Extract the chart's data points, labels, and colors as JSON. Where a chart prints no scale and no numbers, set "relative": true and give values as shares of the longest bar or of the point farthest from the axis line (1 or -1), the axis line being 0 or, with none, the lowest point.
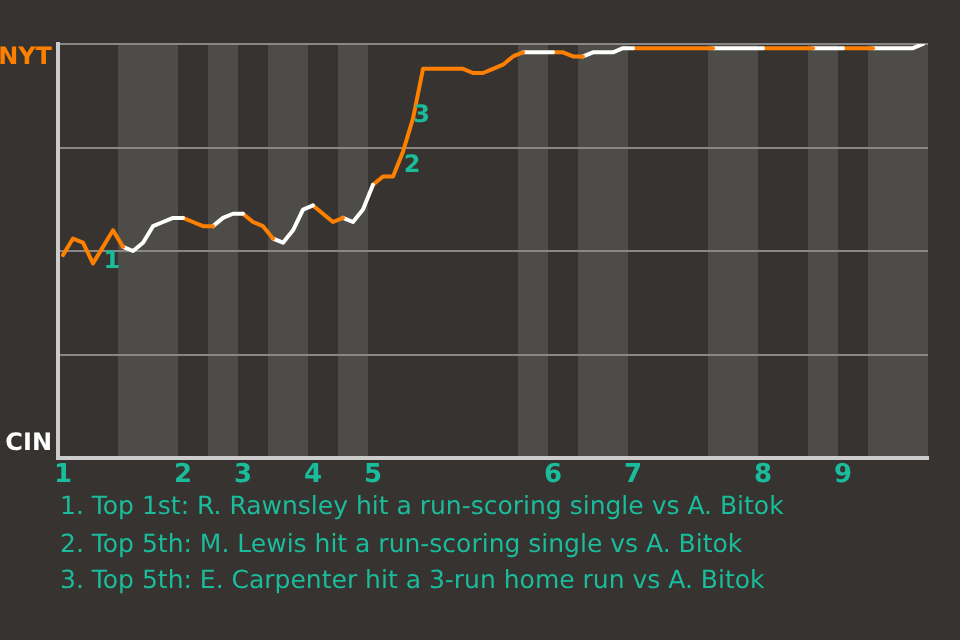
{
  "chart_data": {
    "type": "line",
    "relative": true,
    "categories": [
      "1",
      null,
      null,
      null,
      null,
      null,
      null,
      null,
      null,
      null,
      null,
      null,
      "2",
      null,
      null,
      null,
      null,
      null,
      "3",
      null,
      null,
      null,
      null,
      null,
      null,
      "4",
      null,
      null,
      null,
      null,
      null,
      "5",
      null,
      null,
      null,
      null,
      null,
      null,
      null,
      null,
      null,
      null,
      null,
      null,
      null,
      null,
      null,
      null,
      null,
      "6",
      null,
      null,
      null,
      null,
      null,
      null,
      null,
      "7",
      null,
      null,
      null,
      null,
      null,
      null,
      null,
      null,
      null,
      null,
      null,
      null,
      "8",
      null,
      null,
      null,
      null,
      null,
      null,
      null,
      "9",
      null,
      null,
      null,
      null,
      null,
      null,
      null,
      null
    ],
    "series": [
      {
        "color": "#ff8000",
        "values": [
          0.49,
          0.53,
          0.52,
          0.47,
          0.51,
          0.55,
          0.51,
          null,
          null,
          null,
          null,
          null,
          null,
          null,
          null,
          null,
          null,
          null,
          null,
          null,
          null,
          null,
          null,
          null,
          null,
          null,
          null,
          null,
          null,
          null,
          null,
          null,
          null,
          null,
          null,
          null,
          null,
          null,
          null,
          null,
          null,
          null,
          null,
          null,
          null,
          null,
          null,
          null,
          null,
          null,
          null,
          null,
          null,
          null,
          null,
          null,
          null,
          null,
          null,
          null,
          null,
          null,
          null,
          null,
          null,
          null,
          null,
          null,
          null,
          null,
          null,
          null,
          null,
          null,
          null,
          null,
          null,
          null,
          null,
          null,
          null,
          null,
          null,
          null,
          null,
          null,
          null
        ]
      },
      {
        "color": "#ffffff",
        "values": [
          null,
          null,
          null,
          null,
          null,
          null,
          0.51,
          0.5,
          0.52,
          0.56,
          0.57,
          0.58,
          0.58,
          null,
          null,
          null,
          null,
          null,
          null,
          null,
          null,
          null,
          null,
          null,
          null,
          null,
          null,
          null,
          null,
          null,
          null,
          null,
          null,
          null,
          null,
          null,
          null,
          null,
          null,
          null,
          null,
          null,
          null,
          null,
          null,
          null,
          null,
          null,
          null,
          null,
          null,
          null,
          null,
          null,
          null,
          null,
          null,
          null,
          null,
          null,
          null,
          null,
          null,
          null,
          null,
          null,
          null,
          null,
          null,
          null,
          null,
          null,
          null,
          null,
          null,
          null,
          null,
          null,
          null,
          null,
          null,
          null,
          null,
          null,
          null,
          null,
          null
        ]
      },
      {
        "color": "#ff8000",
        "values": [
          null,
          null,
          null,
          null,
          null,
          null,
          null,
          null,
          null,
          null,
          null,
          null,
          0.58,
          0.57,
          0.56,
          0.56,
          null,
          null,
          null,
          null,
          null,
          null,
          null,
          null,
          null,
          null,
          null,
          null,
          null,
          null,
          null,
          null,
          null,
          null,
          null,
          null,
          null,
          null,
          null,
          null,
          null,
          null,
          null,
          null,
          null,
          null,
          null,
          null,
          null,
          null,
          null,
          null,
          null,
          null,
          null,
          null,
          null,
          null,
          null,
          null,
          null,
          null,
          null,
          null,
          null,
          null,
          null,
          null,
          null,
          null,
          null,
          null,
          null,
          null,
          null,
          null,
          null,
          null,
          null,
          null,
          null,
          null,
          null,
          null,
          null,
          null,
          null
        ]
      },
      {
        "color": "#ffffff",
        "values": [
          null,
          null,
          null,
          null,
          null,
          null,
          null,
          null,
          null,
          null,
          null,
          null,
          null,
          null,
          null,
          0.56,
          0.58,
          0.59,
          0.59,
          null,
          null,
          null,
          null,
          null,
          null,
          null,
          null,
          null,
          null,
          null,
          null,
          null,
          null,
          null,
          null,
          null,
          null,
          null,
          null,
          null,
          null,
          null,
          null,
          null,
          null,
          null,
          null,
          null,
          null,
          null,
          null,
          null,
          null,
          null,
          null,
          null,
          null,
          null,
          null,
          null,
          null,
          null,
          null,
          null,
          null,
          null,
          null,
          null,
          null,
          null,
          null,
          null,
          null,
          null,
          null,
          null,
          null,
          null,
          null,
          null,
          null,
          null,
          null,
          null,
          null,
          null,
          null
        ]
      },
      {
        "color": "#ff8000",
        "values": [
          null,
          null,
          null,
          null,
          null,
          null,
          null,
          null,
          null,
          null,
          null,
          null,
          null,
          null,
          null,
          null,
          null,
          null,
          0.59,
          0.57,
          0.56,
          0.53,
          null,
          null,
          null,
          null,
          null,
          null,
          null,
          null,
          null,
          null,
          null,
          null,
          null,
          null,
          null,
          null,
          null,
          null,
          null,
          null,
          null,
          null,
          null,
          null,
          null,
          null,
          null,
          null,
          null,
          null,
          null,
          null,
          null,
          null,
          null,
          null,
          null,
          null,
          null,
          null,
          null,
          null,
          null,
          null,
          null,
          null,
          null,
          null,
          null,
          null,
          null,
          null,
          null,
          null,
          null,
          null,
          null,
          null,
          null,
          null,
          null,
          null,
          null,
          null,
          null
        ]
      },
      {
        "color": "#ffffff",
        "values": [
          null,
          null,
          null,
          null,
          null,
          null,
          null,
          null,
          null,
          null,
          null,
          null,
          null,
          null,
          null,
          null,
          null,
          null,
          null,
          null,
          null,
          0.53,
          0.52,
          0.55,
          0.6,
          0.61,
          null,
          null,
          null,
          null,
          null,
          null,
          null,
          null,
          null,
          null,
          null,
          null,
          null,
          null,
          null,
          null,
          null,
          null,
          null,
          null,
          null,
          null,
          null,
          null,
          null,
          null,
          null,
          null,
          null,
          null,
          null,
          null,
          null,
          null,
          null,
          null,
          null,
          null,
          null,
          null,
          null,
          null,
          null,
          null,
          null,
          null,
          null,
          null,
          null,
          null,
          null,
          null,
          null,
          null,
          null,
          null,
          null,
          null,
          null,
          null,
          null
        ]
      },
      {
        "color": "#ff8000",
        "values": [
          null,
          null,
          null,
          null,
          null,
          null,
          null,
          null,
          null,
          null,
          null,
          null,
          null,
          null,
          null,
          null,
          null,
          null,
          null,
          null,
          null,
          null,
          null,
          null,
          null,
          0.61,
          0.59,
          0.57,
          0.58,
          null,
          null,
          null,
          null,
          null,
          null,
          null,
          null,
          null,
          null,
          null,
          null,
          null,
          null,
          null,
          null,
          null,
          null,
          null,
          null,
          null,
          null,
          null,
          null,
          null,
          null,
          null,
          null,
          null,
          null,
          null,
          null,
          null,
          null,
          null,
          null,
          null,
          null,
          null,
          null,
          null,
          null,
          null,
          null,
          null,
          null,
          null,
          null,
          null,
          null,
          null,
          null,
          null,
          null,
          null,
          null,
          null,
          null
        ]
      },
      {
        "color": "#ffffff",
        "values": [
          null,
          null,
          null,
          null,
          null,
          null,
          null,
          null,
          null,
          null,
          null,
          null,
          null,
          null,
          null,
          null,
          null,
          null,
          null,
          null,
          null,
          null,
          null,
          null,
          null,
          null,
          null,
          null,
          0.58,
          0.57,
          0.6,
          0.66,
          null,
          null,
          null,
          null,
          null,
          null,
          null,
          null,
          null,
          null,
          null,
          null,
          null,
          null,
          null,
          null,
          null,
          null,
          null,
          null,
          null,
          null,
          null,
          null,
          null,
          null,
          null,
          null,
          null,
          null,
          null,
          null,
          null,
          null,
          null,
          null,
          null,
          null,
          null,
          null,
          null,
          null,
          null,
          null,
          null,
          null,
          null,
          null,
          null,
          null,
          null,
          null,
          null,
          null,
          null
        ]
      },
      {
        "color": "#ff8000",
        "values": [
          null,
          null,
          null,
          null,
          null,
          null,
          null,
          null,
          null,
          null,
          null,
          null,
          null,
          null,
          null,
          null,
          null,
          null,
          null,
          null,
          null,
          null,
          null,
          null,
          null,
          null,
          null,
          null,
          null,
          null,
          null,
          0.66,
          0.68,
          0.68,
          0.74,
          0.82,
          0.94,
          0.94,
          0.94,
          0.94,
          0.94,
          0.93,
          0.93,
          0.94,
          0.95,
          0.97,
          0.98,
          null,
          null,
          null,
          null,
          null,
          null,
          null,
          null,
          null,
          null,
          null,
          null,
          null,
          null,
          null,
          null,
          null,
          null,
          null,
          null,
          null,
          null,
          null,
          null,
          null,
          null,
          null,
          null,
          null,
          null,
          null,
          null,
          null,
          null,
          null,
          null,
          null,
          null,
          null,
          null
        ]
      },
      {
        "color": "#ffffff",
        "values": [
          null,
          null,
          null,
          null,
          null,
          null,
          null,
          null,
          null,
          null,
          null,
          null,
          null,
          null,
          null,
          null,
          null,
          null,
          null,
          null,
          null,
          null,
          null,
          null,
          null,
          null,
          null,
          null,
          null,
          null,
          null,
          null,
          null,
          null,
          null,
          null,
          null,
          null,
          null,
          null,
          null,
          null,
          null,
          null,
          null,
          null,
          0.98,
          0.98,
          0.98,
          0.98,
          null,
          null,
          null,
          null,
          null,
          null,
          null,
          null,
          null,
          null,
          null,
          null,
          null,
          null,
          null,
          null,
          null,
          null,
          null,
          null,
          null,
          null,
          null,
          null,
          null,
          null,
          null,
          null,
          null,
          null,
          null,
          null,
          null,
          null,
          null,
          null,
          null
        ]
      },
      {
        "color": "#ff8000",
        "values": [
          null,
          null,
          null,
          null,
          null,
          null,
          null,
          null,
          null,
          null,
          null,
          null,
          null,
          null,
          null,
          null,
          null,
          null,
          null,
          null,
          null,
          null,
          null,
          null,
          null,
          null,
          null,
          null,
          null,
          null,
          null,
          null,
          null,
          null,
          null,
          null,
          null,
          null,
          null,
          null,
          null,
          null,
          null,
          null,
          null,
          null,
          null,
          null,
          null,
          0.98,
          0.98,
          0.97,
          0.97,
          null,
          null,
          null,
          null,
          null,
          null,
          null,
          null,
          null,
          null,
          null,
          null,
          null,
          null,
          null,
          null,
          null,
          null,
          null,
          null,
          null,
          null,
          null,
          null,
          null,
          null,
          null,
          null,
          null,
          null,
          null,
          null,
          null,
          null
        ]
      },
      {
        "color": "#ffffff",
        "values": [
          null,
          null,
          null,
          null,
          null,
          null,
          null,
          null,
          null,
          null,
          null,
          null,
          null,
          null,
          null,
          null,
          null,
          null,
          null,
          null,
          null,
          null,
          null,
          null,
          null,
          null,
          null,
          null,
          null,
          null,
          null,
          null,
          null,
          null,
          null,
          null,
          null,
          null,
          null,
          null,
          null,
          null,
          null,
          null,
          null,
          null,
          null,
          null,
          null,
          null,
          null,
          null,
          0.97,
          0.98,
          0.98,
          0.98,
          0.99,
          0.99,
          null,
          null,
          null,
          null,
          null,
          null,
          null,
          null,
          null,
          null,
          null,
          null,
          null,
          null,
          null,
          null,
          null,
          null,
          null,
          null,
          null,
          null,
          null,
          null,
          null,
          null,
          null,
          null,
          null
        ]
      },
      {
        "color": "#ff8000",
        "values": [
          null,
          null,
          null,
          null,
          null,
          null,
          null,
          null,
          null,
          null,
          null,
          null,
          null,
          null,
          null,
          null,
          null,
          null,
          null,
          null,
          null,
          null,
          null,
          null,
          null,
          null,
          null,
          null,
          null,
          null,
          null,
          null,
          null,
          null,
          null,
          null,
          null,
          null,
          null,
          null,
          null,
          null,
          null,
          null,
          null,
          null,
          null,
          null,
          null,
          null,
          null,
          null,
          null,
          null,
          null,
          null,
          null,
          0.99,
          0.99,
          0.99,
          0.99,
          0.99,
          0.99,
          0.99,
          0.99,
          0.99,
          null,
          null,
          null,
          null,
          null,
          null,
          null,
          null,
          null,
          null,
          null,
          null,
          null,
          null,
          null,
          null,
          null,
          null,
          null,
          null,
          null
        ]
      },
      {
        "color": "#ffffff",
        "values": [
          null,
          null,
          null,
          null,
          null,
          null,
          null,
          null,
          null,
          null,
          null,
          null,
          null,
          null,
          null,
          null,
          null,
          null,
          null,
          null,
          null,
          null,
          null,
          null,
          null,
          null,
          null,
          null,
          null,
          null,
          null,
          null,
          null,
          null,
          null,
          null,
          null,
          null,
          null,
          null,
          null,
          null,
          null,
          null,
          null,
          null,
          null,
          null,
          null,
          null,
          null,
          null,
          null,
          null,
          null,
          null,
          null,
          null,
          null,
          null,
          null,
          null,
          null,
          null,
          null,
          0.99,
          0.99,
          0.99,
          0.99,
          0.99,
          0.99,
          null,
          null,
          null,
          null,
          null,
          null,
          null,
          null,
          null,
          null,
          null,
          null,
          null,
          null,
          null,
          null
        ]
      },
      {
        "color": "#ff8000",
        "values": [
          null,
          null,
          null,
          null,
          null,
          null,
          null,
          null,
          null,
          null,
          null,
          null,
          null,
          null,
          null,
          null,
          null,
          null,
          null,
          null,
          null,
          null,
          null,
          null,
          null,
          null,
          null,
          null,
          null,
          null,
          null,
          null,
          null,
          null,
          null,
          null,
          null,
          null,
          null,
          null,
          null,
          null,
          null,
          null,
          null,
          null,
          null,
          null,
          null,
          null,
          null,
          null,
          null,
          null,
          null,
          null,
          null,
          null,
          null,
          null,
          null,
          null,
          null,
          null,
          null,
          null,
          null,
          null,
          null,
          null,
          0.99,
          0.99,
          0.99,
          0.99,
          0.99,
          0.99,
          null,
          null,
          null,
          null,
          null,
          null,
          null,
          null,
          null,
          null,
          null
        ]
      },
      {
        "color": "#ffffff",
        "values": [
          null,
          null,
          null,
          null,
          null,
          null,
          null,
          null,
          null,
          null,
          null,
          null,
          null,
          null,
          null,
          null,
          null,
          null,
          null,
          null,
          null,
          null,
          null,
          null,
          null,
          null,
          null,
          null,
          null,
          null,
          null,
          null,
          null,
          null,
          null,
          null,
          null,
          null,
          null,
          null,
          null,
          null,
          null,
          null,
          null,
          null,
          null,
          null,
          null,
          null,
          null,
          null,
          null,
          null,
          null,
          null,
          null,
          null,
          null,
          null,
          null,
          null,
          null,
          null,
          null,
          null,
          null,
          null,
          null,
          null,
          null,
          null,
          null,
          null,
          null,
          0.99,
          0.99,
          0.99,
          0.99,
          null,
          null,
          null,
          null,
          null,
          null,
          null,
          null
        ]
      },
      {
        "color": "#ff8000",
        "values": [
          null,
          null,
          null,
          null,
          null,
          null,
          null,
          null,
          null,
          null,
          null,
          null,
          null,
          null,
          null,
          null,
          null,
          null,
          null,
          null,
          null,
          null,
          null,
          null,
          null,
          null,
          null,
          null,
          null,
          null,
          null,
          null,
          null,
          null,
          null,
          null,
          null,
          null,
          null,
          null,
          null,
          null,
          null,
          null,
          null,
          null,
          null,
          null,
          null,
          null,
          null,
          null,
          null,
          null,
          null,
          null,
          null,
          null,
          null,
          null,
          null,
          null,
          null,
          null,
          null,
          null,
          null,
          null,
          null,
          null,
          null,
          null,
          null,
          null,
          null,
          null,
          null,
          null,
          0.99,
          0.99,
          0.99,
          0.99,
          null,
          null,
          null,
          null,
          null
        ]
      },
      {
        "color": "#ffffff",
        "values": [
          null,
          null,
          null,
          null,
          null,
          null,
          null,
          null,
          null,
          null,
          null,
          null,
          null,
          null,
          null,
          null,
          null,
          null,
          null,
          null,
          null,
          null,
          null,
          null,
          null,
          null,
          null,
          null,
          null,
          null,
          null,
          null,
          null,
          null,
          null,
          null,
          null,
          null,
          null,
          null,
          null,
          null,
          null,
          null,
          null,
          null,
          null,
          null,
          null,
          null,
          null,
          null,
          null,
          null,
          null,
          null,
          null,
          null,
          null,
          null,
          null,
          null,
          null,
          null,
          null,
          null,
          null,
          null,
          null,
          null,
          null,
          null,
          null,
          null,
          null,
          null,
          null,
          null,
          null,
          null,
          null,
          0.99,
          0.99,
          0.99,
          0.99,
          0.99,
          1.0
        ]
      }
    ],
    "grid": "y",
    "legend": false,
    "marker": "none",
    "line_style": "solid",
    "annotations": [
      "NYT",
      "CIN",
      "1",
      "2",
      "3",
      "1. Top 1st: R. Rawnsley hit a run-scoring single vs A. Bitok",
      "2. Top 5th: M. Lewis hit a run-scoring single vs A. Bitok",
      "3. Top 5th: E. Carpenter hit a 3-run home run vs A. Bitok"
    ]
  }
}
